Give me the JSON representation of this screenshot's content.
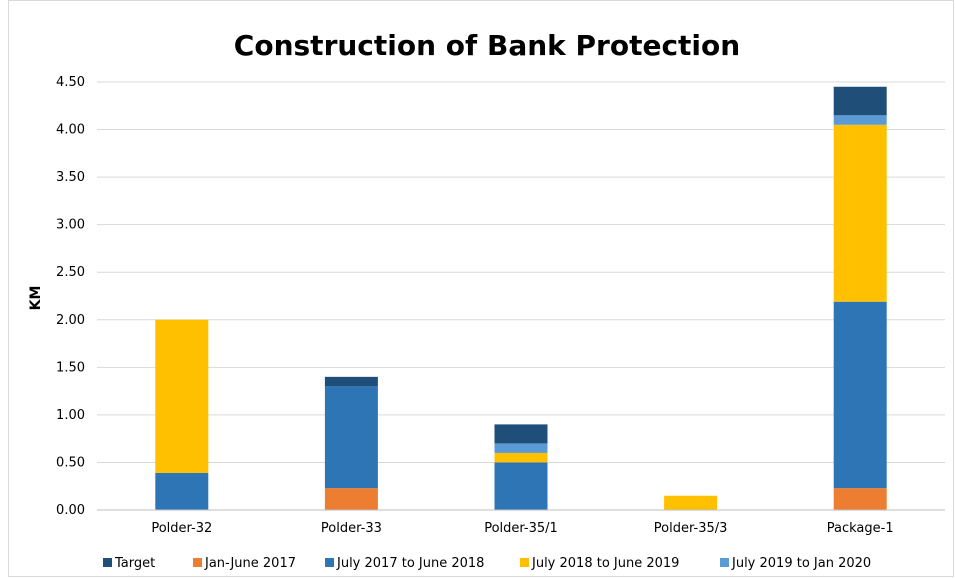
{
  "chart_data": {
    "type": "bar",
    "stacked": true,
    "title": "Construction of Bank Protection",
    "xlabel": "",
    "ylabel": "KM",
    "ylim": [
      0,
      4.5
    ],
    "yticks": [
      "0.00",
      "0.50",
      "1.00",
      "1.50",
      "2.00",
      "2.50",
      "3.00",
      "3.50",
      "4.00",
      "4.50"
    ],
    "grid": true,
    "legend_position": "bottom",
    "categories": [
      "Polder-32",
      "Polder-33",
      "Polder-35/1",
      "Polder-35/3",
      "Package-1"
    ],
    "series": [
      {
        "name": "Jan-June 2017",
        "color": "#ed7d31",
        "values": [
          0,
          0.23,
          0,
          0,
          0.23
        ]
      },
      {
        "name": "July 2017 to June 2018",
        "color": "#2e75b6",
        "values": [
          0.39,
          1.07,
          0.5,
          0,
          1.96
        ]
      },
      {
        "name": "July 2018 to June 2019",
        "color": "#ffc000",
        "values": [
          1.61,
          0,
          0.1,
          0.15,
          1.86
        ]
      },
      {
        "name": "July 2019 to Jan 2020",
        "color": "#5b9bd5",
        "values": [
          0,
          0,
          0.1,
          0,
          0.1
        ]
      },
      {
        "name": "Target",
        "color": "#1f4e79",
        "values": [
          0,
          0.1,
          0.2,
          0,
          0.3
        ]
      }
    ],
    "legend_order": [
      "Target",
      "Jan-June 2017",
      "July 2017 to June 2018",
      "July 2018 to June 2019",
      "July 2019 to Jan 2020"
    ]
  }
}
